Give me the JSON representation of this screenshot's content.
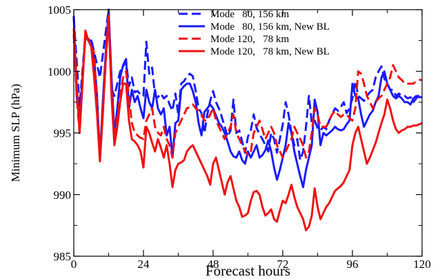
{
  "chart_data": {
    "type": "line",
    "title": "",
    "xlabel": "Forecast hours",
    "ylabel": "Minimum  SLP (hPa)",
    "xlim": [
      0,
      120
    ],
    "ylim": [
      985,
      1005
    ],
    "xticks": [
      0,
      24,
      48,
      72,
      96,
      120
    ],
    "yticks": [
      985,
      990,
      995,
      1000,
      1005
    ],
    "grid": false,
    "legend_position": "top-center",
    "colors": {
      "blue": "#1a1aff",
      "red": "#ee1111"
    },
    "series": [
      {
        "name": "Mode   80, 156 km",
        "color": "#1a1aff",
        "dash": "dashed",
        "x": [
          0,
          2,
          3,
          4,
          5,
          6,
          9,
          12,
          13,
          14,
          16,
          17,
          18,
          19,
          20,
          21,
          22,
          23,
          24,
          25,
          26,
          27,
          28,
          29,
          30,
          31,
          32,
          33,
          34,
          35,
          36,
          37,
          38,
          39,
          40,
          41,
          42,
          43,
          44,
          45,
          46,
          47,
          48,
          49,
          50,
          51,
          52,
          53,
          54,
          55,
          56,
          57,
          58,
          59,
          60,
          61,
          62,
          63,
          64,
          65,
          66,
          67,
          68,
          69,
          70,
          71,
          72,
          73,
          74,
          75,
          76,
          77,
          78,
          79,
          80,
          81,
          82,
          83,
          84,
          85,
          86,
          87,
          88,
          89,
          90,
          91,
          92,
          93,
          94,
          95,
          96,
          97,
          98,
          99,
          100,
          101,
          102,
          103,
          104,
          105,
          106,
          107,
          108,
          109,
          110,
          111,
          112,
          113,
          114,
          115,
          116,
          117,
          118,
          119,
          120
        ],
        "values": [
          1004.3,
          997.2,
          1000.0,
          1003.0,
          1002.6,
          1002.6,
          999.5,
          1005.0,
          998.6,
          998.0,
          1000.0,
          1000.4,
          1000.8,
          998.8,
          999.5,
          998.3,
          998.4,
          998.1,
          998.0,
          1002.4,
          999.8,
          1000.3,
          998.0,
          997.9,
          998.2,
          997.8,
          998.0,
          997.3,
          996.8,
          998.2,
          996.5,
          999.0,
          999.2,
          999.6,
          999.8,
          999.6,
          998.4,
          997.0,
          996.6,
          995.0,
          996.5,
          997.6,
          998.4,
          997.5,
          997.0,
          996.3,
          995.5,
          994.7,
          995.2,
          997.7,
          995.0,
          995.2,
          994.3,
          993.4,
          994.7,
          995.2,
          996.5,
          995.4,
          994.9,
          994.5,
          994.0,
          993.5,
          995.0,
          994.5,
          993.4,
          994.5,
          995.7,
          997.5,
          996.5,
          995.0,
          994.0,
          994.5,
          992.8,
          993.5,
          995.5,
          998.0,
          995.8,
          996.0,
          995.4,
          995.2,
          995.5,
          995.3,
          996.0,
          996.5,
          997.0,
          996.8,
          997.1,
          997.5,
          996.6,
          997.0,
          997.8,
          999.2,
          998.0,
          997.8,
          997.6,
          998.0,
          998.3,
          998.5,
          999.5,
          1000.0,
          1000.4,
          999.4,
          999.0,
          998.5,
          998.5,
          998.0,
          998.2,
          998.0,
          998.0,
          997.8,
          997.9,
          997.5,
          997.8,
          998.1,
          998.0
        ]
      },
      {
        "name": "Mode   80, 156 km, New BL",
        "color": "#1a1aff",
        "dash": "solid",
        "x": [
          0,
          1,
          2,
          3,
          4,
          5,
          6,
          7,
          8,
          9,
          10,
          11,
          12,
          13,
          14,
          15,
          16,
          17,
          18,
          19,
          20,
          21,
          22,
          23,
          24,
          25,
          26,
          27,
          28,
          29,
          30,
          31,
          32,
          33,
          34,
          35,
          36,
          37,
          38,
          39,
          40,
          41,
          42,
          43,
          44,
          45,
          46,
          47,
          48,
          49,
          50,
          51,
          52,
          53,
          54,
          55,
          56,
          57,
          58,
          59,
          60,
          61,
          62,
          63,
          64,
          65,
          66,
          67,
          68,
          69,
          70,
          71,
          72,
          73,
          74,
          75,
          76,
          77,
          78,
          79,
          80,
          81,
          82,
          83,
          84,
          85,
          86,
          87,
          88,
          89,
          90,
          91,
          92,
          93,
          94,
          95,
          96,
          97,
          98,
          99,
          100,
          101,
          102,
          103,
          104,
          105,
          106,
          107,
          108,
          109,
          110,
          111,
          112,
          113,
          114,
          115,
          116,
          117,
          118,
          119,
          120
        ],
        "values": [
          1004.5,
          998.0,
          996.0,
          999.5,
          1002.8,
          1002.5,
          1002.5,
          1001.0,
          998.0,
          993.0,
          997.5,
          1001.5,
          1005.0,
          999.5,
          995.0,
          997.0,
          999.5,
          1000.5,
          1001.0,
          997.0,
          998.5,
          997.5,
          998.0,
          997.0,
          996.2,
          998.5,
          997.5,
          997.0,
          998.5,
          997.0,
          996.5,
          997.0,
          994.8,
          995.5,
          993.0,
          995.8,
          996.0,
          998.5,
          998.8,
          999.0,
          999.0,
          998.4,
          997.5,
          995.8,
          994.8,
          996.7,
          997.0,
          997.3,
          997.0,
          996.4,
          995.8,
          995.5,
          995.0,
          994.3,
          993.5,
          993.1,
          993.0,
          993.5,
          992.8,
          992.5,
          993.5,
          993.0,
          993.5,
          994.0,
          993.0,
          993.2,
          993.6,
          994.4,
          993.5,
          992.2,
          991.2,
          992.0,
          993.0,
          994.0,
          995.8,
          995.0,
          993.5,
          992.5,
          991.5,
          990.6,
          992.0,
          993.0,
          994.0,
          997.7,
          996.7,
          994.0,
          995.0,
          994.8,
          995.0,
          995.2,
          995.5,
          995.3,
          995.2,
          995.3,
          995.7,
          996.0,
          999.0,
          998.0,
          997.8,
          996.5,
          995.5,
          996.0,
          996.5,
          996.8,
          997.5,
          998.0,
          999.5,
          1000.0,
          999.0,
          998.5,
          998.0,
          997.8,
          998.0,
          997.8,
          997.5,
          997.5,
          997.3,
          997.8,
          998.0,
          997.9,
          997.9
        ]
      },
      {
        "name": "Mode 120,   78 km",
        "color": "#ee1111",
        "dash": "dashed",
        "x": [
          0,
          1,
          2,
          4,
          5,
          6,
          7,
          9,
          12,
          13,
          14,
          16,
          17,
          18,
          20,
          21,
          22,
          23,
          24,
          25,
          26,
          27,
          28,
          29,
          30,
          31,
          32,
          33,
          34,
          35,
          36,
          37,
          38,
          39,
          40,
          41,
          42,
          43,
          44,
          45,
          46,
          47,
          48,
          49,
          50,
          51,
          52,
          53,
          54,
          55,
          56,
          57,
          58,
          59,
          60,
          61,
          62,
          63,
          64,
          65,
          66,
          67,
          68,
          69,
          70,
          71,
          72,
          73,
          74,
          75,
          76,
          77,
          78,
          79,
          80,
          81,
          82,
          83,
          84,
          85,
          86,
          87,
          88,
          89,
          90,
          91,
          92,
          93,
          94,
          95,
          96,
          97,
          98,
          99,
          100,
          101,
          102,
          103,
          104,
          105,
          106,
          107,
          108,
          109,
          110,
          111,
          112,
          113,
          114,
          115,
          116,
          117,
          118,
          119,
          120
        ],
        "values": [
          1003.0,
          998.0,
          995.0,
          1003.0,
          1002.5,
          1002.0,
          1001.5,
          993.0,
          1004.5,
          998.5,
          994.5,
          998.0,
          999.5,
          1000.0,
          995.8,
          995.0,
          994.8,
          994.6,
          994.5,
          996.0,
          996.5,
          997.0,
          995.5,
          995.0,
          994.8,
          995.5,
          994.5,
          994.0,
          993.0,
          995.0,
          995.5,
          996.0,
          996.5,
          997.0,
          997.1,
          997.3,
          997.0,
          996.8,
          996.5,
          996.0,
          996.0,
          996.5,
          997.0,
          996.0,
          995.5,
          995.0,
          994.5,
          995.0,
          995.5,
          996.5,
          995.0,
          994.5,
          994.0,
          993.5,
          993.2,
          993.5,
          995.0,
          995.5,
          996.0,
          995.3,
          994.5,
          995.0,
          995.5,
          995.0,
          994.0,
          993.5,
          993.0,
          993.5,
          994.0,
          994.5,
          995.5,
          995.0,
          994.5,
          994.0,
          993.0,
          993.5,
          995.0,
          997.0,
          996.5,
          995.5,
          995.5,
          995.5,
          996.0,
          996.5,
          996.8,
          996.5,
          996.3,
          996.5,
          996.5,
          996.2,
          996.0,
          997.0,
          1000.0,
          999.8,
          999.0,
          998.0,
          997.5,
          997.0,
          997.5,
          997.8,
          998.0,
          998.5,
          999.0,
          999.5,
          1000.5,
          1000.0,
          999.5,
          999.3,
          999.0,
          999.0,
          999.0,
          999.0,
          999.2,
          999.3,
          999.3
        ]
      },
      {
        "name": "Mode 120,   78 km, New BL",
        "color": "#ee1111",
        "dash": "solid",
        "x": [
          0,
          1,
          2,
          3,
          4,
          5,
          6,
          7,
          8,
          9,
          10,
          11,
          12,
          13,
          14,
          15,
          16,
          17,
          18,
          19,
          20,
          21,
          22,
          23,
          24,
          25,
          26,
          27,
          28,
          29,
          30,
          31,
          32,
          33,
          34,
          35,
          36,
          37,
          38,
          39,
          40,
          41,
          42,
          43,
          44,
          45,
          46,
          47,
          48,
          49,
          50,
          51,
          52,
          53,
          54,
          55,
          56,
          57,
          58,
          59,
          60,
          61,
          62,
          63,
          64,
          65,
          66,
          67,
          68,
          69,
          70,
          71,
          72,
          73,
          74,
          75,
          76,
          77,
          78,
          79,
          80,
          81,
          82,
          83,
          84,
          85,
          86,
          87,
          88,
          89,
          90,
          91,
          92,
          93,
          94,
          95,
          96,
          97,
          98,
          99,
          100,
          101,
          102,
          103,
          104,
          105,
          106,
          107,
          108,
          109,
          110,
          111,
          112,
          113,
          114,
          115,
          116,
          117,
          118,
          119,
          120
        ],
        "values": [
          1003.5,
          999.0,
          995.0,
          999.0,
          1003.3,
          1002.5,
          1002.0,
          999.5,
          996.5,
          992.7,
          996.5,
          1001.0,
          1004.5,
          998.0,
          994.0,
          995.5,
          997.5,
          999.0,
          999.0,
          996.0,
          994.5,
          994.3,
          994.0,
          993.5,
          992.2,
          995.5,
          995.0,
          994.2,
          993.5,
          994.5,
          993.8,
          993.0,
          994.0,
          992.5,
          990.6,
          992.0,
          992.5,
          992.6,
          992.8,
          993.5,
          993.8,
          994.0,
          993.5,
          993.0,
          992.5,
          992.0,
          991.5,
          990.8,
          992.5,
          993.0,
          992.0,
          991.0,
          990.0,
          991.0,
          991.5,
          990.5,
          989.5,
          989.0,
          988.2,
          988.3,
          988.5,
          989.5,
          990.2,
          990.3,
          990.0,
          989.0,
          988.3,
          988.5,
          988.8,
          988.0,
          987.8,
          988.7,
          989.5,
          989.3,
          990.0,
          990.8,
          989.8,
          989.0,
          988.5,
          988.0,
          987.1,
          987.4,
          988.3,
          990.5,
          989.0,
          988.0,
          988.5,
          989.0,
          989.3,
          989.8,
          990.3,
          990.5,
          990.7,
          991.0,
          991.5,
          992.0,
          994.0,
          995.0,
          995.5,
          994.5,
          993.5,
          992.5,
          993.0,
          993.6,
          994.2,
          995.0,
          995.8,
          996.5,
          997.7,
          997.0,
          996.0,
          995.3,
          995.0,
          995.2,
          995.3,
          995.5,
          995.5,
          995.6,
          995.6,
          995.7,
          995.8
        ]
      }
    ]
  }
}
